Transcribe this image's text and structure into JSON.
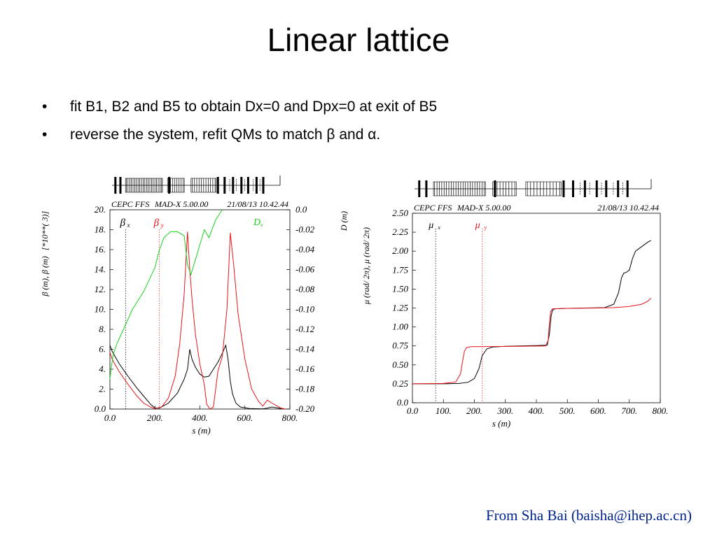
{
  "slide": {
    "title": "Linear lattice",
    "bullets": [
      {
        "marker": "•",
        "text": "fit B1, B2 and B5 to obtain Dx=0 and Dpx=0 at exit of B5"
      },
      {
        "marker": "•",
        "text": "reverse the system, refit QMs to match β and α."
      }
    ],
    "credit": "From Sha Bai (baisha@ihep.ac.cn)"
  },
  "colors": {
    "black": "#000000",
    "red": "#e8141a",
    "green": "#19d219",
    "credit": "#00238c"
  },
  "chart_data": [
    {
      "type": "line",
      "header_left": "CEPC FFS",
      "header_mid": "MAD-X 5.00.00",
      "header_right": "21/08/13 10.42.44",
      "xlabel": "s (m)",
      "ylabel": "β  (m), β  (m)",
      "y2label": "[*10**(  3)]",
      "xlim": [
        0,
        800
      ],
      "ylim": [
        0,
        20
      ],
      "y2lim": [
        -0.2,
        0
      ],
      "xticks": [
        "0.0",
        "200.",
        "400.",
        "600.",
        "800."
      ],
      "yticks": [
        "0.0",
        "2.",
        "4.",
        "6.",
        "8.",
        "10.",
        "12.",
        "14.",
        "16.",
        "18.",
        "20."
      ],
      "y2ticks": [
        "-0.20",
        "-0.18",
        "-0.16",
        "-0.14",
        "-0.12",
        "-0.10",
        "-0.08",
        "-0.06",
        "-0.04",
        "-0.02",
        "0.0"
      ],
      "markers": [
        {
          "label": "β",
          "sub": "x",
          "x": 70,
          "color": "#000000"
        },
        {
          "label": "β",
          "sub": "y",
          "x": 220,
          "color": "#e8141a"
        }
      ],
      "series": [
        {
          "name": "β x",
          "color": "#000000",
          "axis": "left",
          "x": [
            0,
            10,
            40,
            80,
            120,
            150,
            180,
            200,
            220,
            260,
            300,
            330,
            345,
            355,
            365,
            380,
            400,
            420,
            440,
            460,
            480,
            500,
            515,
            525,
            535,
            545,
            560,
            580,
            620,
            680,
            700,
            720,
            760,
            780
          ],
          "y": [
            6.4,
            5.8,
            4.6,
            3.3,
            2.1,
            1.3,
            0.5,
            0.1,
            0.1,
            0.6,
            1.6,
            3.0,
            4.0,
            6.0,
            5.0,
            4.2,
            3.5,
            3.2,
            3.3,
            4.0,
            4.7,
            5.6,
            6.4,
            5.0,
            2.8,
            1.5,
            0.6,
            0.2,
            0.05,
            0.02,
            0.1,
            0.2,
            0.05,
            0.0
          ]
        },
        {
          "name": "β y",
          "color": "#e8141a",
          "axis": "left",
          "x": [
            0,
            10,
            40,
            80,
            120,
            150,
            180,
            200,
            230,
            260,
            290,
            310,
            330,
            345,
            355,
            365,
            380,
            400,
            420,
            430,
            445,
            460,
            480,
            500,
            520,
            535,
            550,
            570,
            600,
            630,
            660,
            680,
            700,
            720,
            760,
            780
          ],
          "y": [
            5.7,
            5.0,
            3.8,
            2.5,
            1.3,
            0.6,
            0.2,
            0.05,
            0.2,
            1.1,
            3.3,
            6.5,
            11.5,
            17.8,
            14.0,
            11.0,
            7.5,
            4.5,
            2.4,
            0.5,
            0.0,
            0.2,
            3.8,
            5.3,
            10.0,
            17.7,
            14.5,
            9.5,
            5.0,
            2.0,
            0.8,
            0.3,
            0.9,
            0.6,
            0.1,
            0.0
          ]
        },
        {
          "name": "D x",
          "color": "#19d219",
          "axis": "right",
          "x": [
            0,
            5,
            15,
            30,
            60,
            100,
            150,
            200,
            220,
            240,
            270,
            300,
            330,
            345,
            360,
            380,
            400,
            420,
            440,
            470,
            500
          ],
          "y": [
            -0.17,
            -0.16,
            -0.145,
            -0.135,
            -0.12,
            -0.1,
            -0.082,
            -0.058,
            -0.04,
            -0.028,
            -0.022,
            -0.022,
            -0.026,
            -0.055,
            -0.065,
            -0.05,
            -0.035,
            -0.02,
            -0.028,
            -0.01,
            0.0
          ]
        }
      ],
      "legend_dx": {
        "label": "D",
        "sub": "x"
      }
    },
    {
      "type": "line",
      "header_left": "CEPC FFS",
      "header_mid": "MAD-X 5.00.00",
      "header_right": "21/08/13 10.42.44",
      "xlabel": "s (m)",
      "ylabel": "μ  (rad/ 2π), μ  (rad/ 2π)",
      "y2label": "D  (m)",
      "xlim": [
        0,
        800
      ],
      "ylim": [
        0,
        2.5
      ],
      "xticks": [
        "0.0",
        "100.",
        "200.",
        "300.",
        "400.",
        "500.",
        "600.",
        "700.",
        "800."
      ],
      "yticks": [
        "0.0",
        "0.25",
        "0.50",
        "0.75",
        "1.00",
        "1.25",
        "1.50",
        "1.75",
        "2.00",
        "2.25",
        "2.50"
      ],
      "markers": [
        {
          "label": "μ",
          "sub": "x",
          "x": 75,
          "color": "#000000"
        },
        {
          "label": "μ",
          "sub": "y",
          "x": 225,
          "color": "#e8141a"
        }
      ],
      "series": [
        {
          "name": "μ x",
          "color": "#000000",
          "x": [
            0,
            100,
            150,
            180,
            200,
            215,
            225,
            240,
            260,
            300,
            350,
            400,
            435,
            442,
            448,
            452,
            460,
            500,
            560,
            620,
            650,
            665,
            675,
            682,
            690,
            700,
            710,
            720,
            740,
            760,
            770
          ],
          "y": [
            0.25,
            0.25,
            0.255,
            0.27,
            0.32,
            0.45,
            0.62,
            0.71,
            0.735,
            0.745,
            0.75,
            0.755,
            0.76,
            0.9,
            1.15,
            1.22,
            1.24,
            1.245,
            1.25,
            1.255,
            1.3,
            1.45,
            1.65,
            1.71,
            1.72,
            1.75,
            1.9,
            2.0,
            2.06,
            2.12,
            2.14
          ]
        },
        {
          "name": "μ y",
          "color": "#e8141a",
          "x": [
            0,
            100,
            140,
            155,
            162,
            168,
            175,
            190,
            250,
            350,
            430,
            438,
            442,
            446,
            452,
            500,
            600,
            650,
            700,
            740,
            760,
            770
          ],
          "y": [
            0.25,
            0.255,
            0.275,
            0.38,
            0.55,
            0.68,
            0.73,
            0.74,
            0.742,
            0.745,
            0.75,
            0.82,
            1.05,
            1.2,
            1.24,
            1.245,
            1.25,
            1.255,
            1.27,
            1.3,
            1.34,
            1.38
          ]
        }
      ]
    }
  ]
}
